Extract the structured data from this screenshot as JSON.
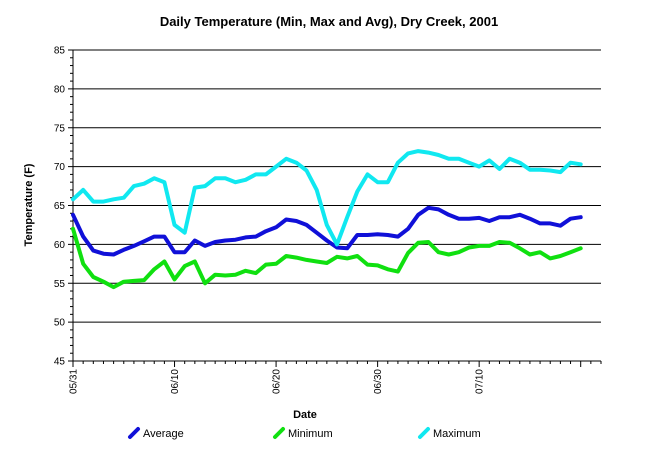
{
  "chart_data": {
    "type": "line",
    "title": "Daily Temperature (Min, Max and Avg), Dry Creek, 2001",
    "xlabel": "Date",
    "ylabel": "Temperature (F)",
    "x_start": "2001-05-31",
    "x_tick_labels": [
      "05/31",
      "06/10",
      "06/20",
      "06/30",
      "07/10"
    ],
    "x_tick_dates": [
      "2001-05-31",
      "2001-06-10",
      "2001-06-20",
      "2001-06-30",
      "2001-07-10"
    ],
    "xlim": [
      "2001-05-31",
      "2001-07-22"
    ],
    "ylim": [
      45,
      85
    ],
    "y_ticks": [
      45,
      50,
      55,
      60,
      65,
      70,
      75,
      80,
      85
    ],
    "grid": "horizontal",
    "legend_position": "bottom",
    "series": [
      {
        "name": "Average",
        "color": "#1010d8",
        "values": [
          63.8,
          61.0,
          59.2,
          58.8,
          58.7,
          59.3,
          59.8,
          60.4,
          61.0,
          61.0,
          59.0,
          59.0,
          60.5,
          59.8,
          60.3,
          60.5,
          60.6,
          60.9,
          61.0,
          61.7,
          62.2,
          63.2,
          63.0,
          62.5,
          61.5,
          60.5,
          59.6,
          59.5,
          61.2,
          61.2,
          61.3,
          61.2,
          61.0,
          62.0,
          63.8,
          64.7,
          64.5,
          63.8,
          63.3,
          63.3,
          63.4,
          63.0,
          63.5,
          63.5,
          63.8,
          63.3,
          62.7,
          62.7,
          62.4,
          63.3,
          63.5
        ]
      },
      {
        "name": "Minimum",
        "color": "#10e010",
        "values": [
          62.0,
          57.5,
          55.8,
          55.2,
          54.5,
          55.2,
          55.3,
          55.4,
          56.8,
          57.8,
          55.5,
          57.2,
          57.8,
          55.0,
          56.1,
          56.0,
          56.1,
          56.6,
          56.3,
          57.4,
          57.5,
          58.5,
          58.3,
          58.0,
          57.8,
          57.6,
          58.4,
          58.2,
          58.5,
          57.4,
          57.3,
          56.8,
          56.5,
          58.9,
          60.2,
          60.3,
          59.0,
          58.7,
          59.0,
          59.6,
          59.8,
          59.8,
          60.3,
          60.2,
          59.5,
          58.7,
          59.0,
          58.2,
          58.5,
          59.0,
          59.5
        ]
      },
      {
        "name": "Maximum",
        "color": "#10e8f0",
        "values": [
          65.8,
          67.0,
          65.5,
          65.5,
          65.8,
          66.0,
          67.5,
          67.8,
          68.5,
          68.0,
          62.5,
          61.5,
          67.3,
          67.5,
          68.5,
          68.5,
          68.0,
          68.3,
          69.0,
          69.0,
          70.0,
          71.0,
          70.5,
          69.5,
          67.0,
          62.5,
          60.0,
          63.5,
          66.8,
          69.0,
          68.0,
          68.0,
          70.5,
          71.7,
          72.0,
          71.8,
          71.5,
          71.0,
          71.0,
          70.5,
          70.0,
          70.8,
          69.7,
          71.0,
          70.5,
          69.6,
          69.6,
          69.5,
          69.3,
          70.5,
          70.3
        ]
      }
    ]
  }
}
